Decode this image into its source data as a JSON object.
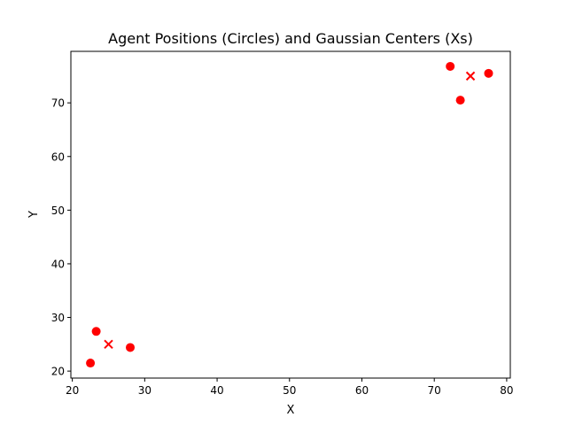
{
  "chart_data": {
    "type": "scatter",
    "title": "Agent Positions (Circles) and Gaussian Centers (Xs)",
    "xlabel": "X",
    "ylabel": "Y",
    "xlim": [
      19.8,
      80.5
    ],
    "ylim": [
      18.7,
      79.6
    ],
    "xticks": [
      20,
      30,
      40,
      50,
      60,
      70,
      80
    ],
    "yticks": [
      20,
      30,
      40,
      50,
      60,
      70
    ],
    "grid": false,
    "legend": "none",
    "series": [
      {
        "marker": "circle",
        "color": "#ff0000",
        "points": [
          {
            "x": 22.5,
            "y": 21.5
          },
          {
            "x": 23.3,
            "y": 27.4
          },
          {
            "x": 28.0,
            "y": 24.4
          },
          {
            "x": 72.2,
            "y": 76.8
          },
          {
            "x": 73.6,
            "y": 70.5
          },
          {
            "x": 77.5,
            "y": 75.5
          }
        ]
      },
      {
        "marker": "x",
        "color": "#ff0000",
        "points": [
          {
            "x": 25.0,
            "y": 25.0
          },
          {
            "x": 75.0,
            "y": 75.0
          }
        ]
      }
    ]
  }
}
